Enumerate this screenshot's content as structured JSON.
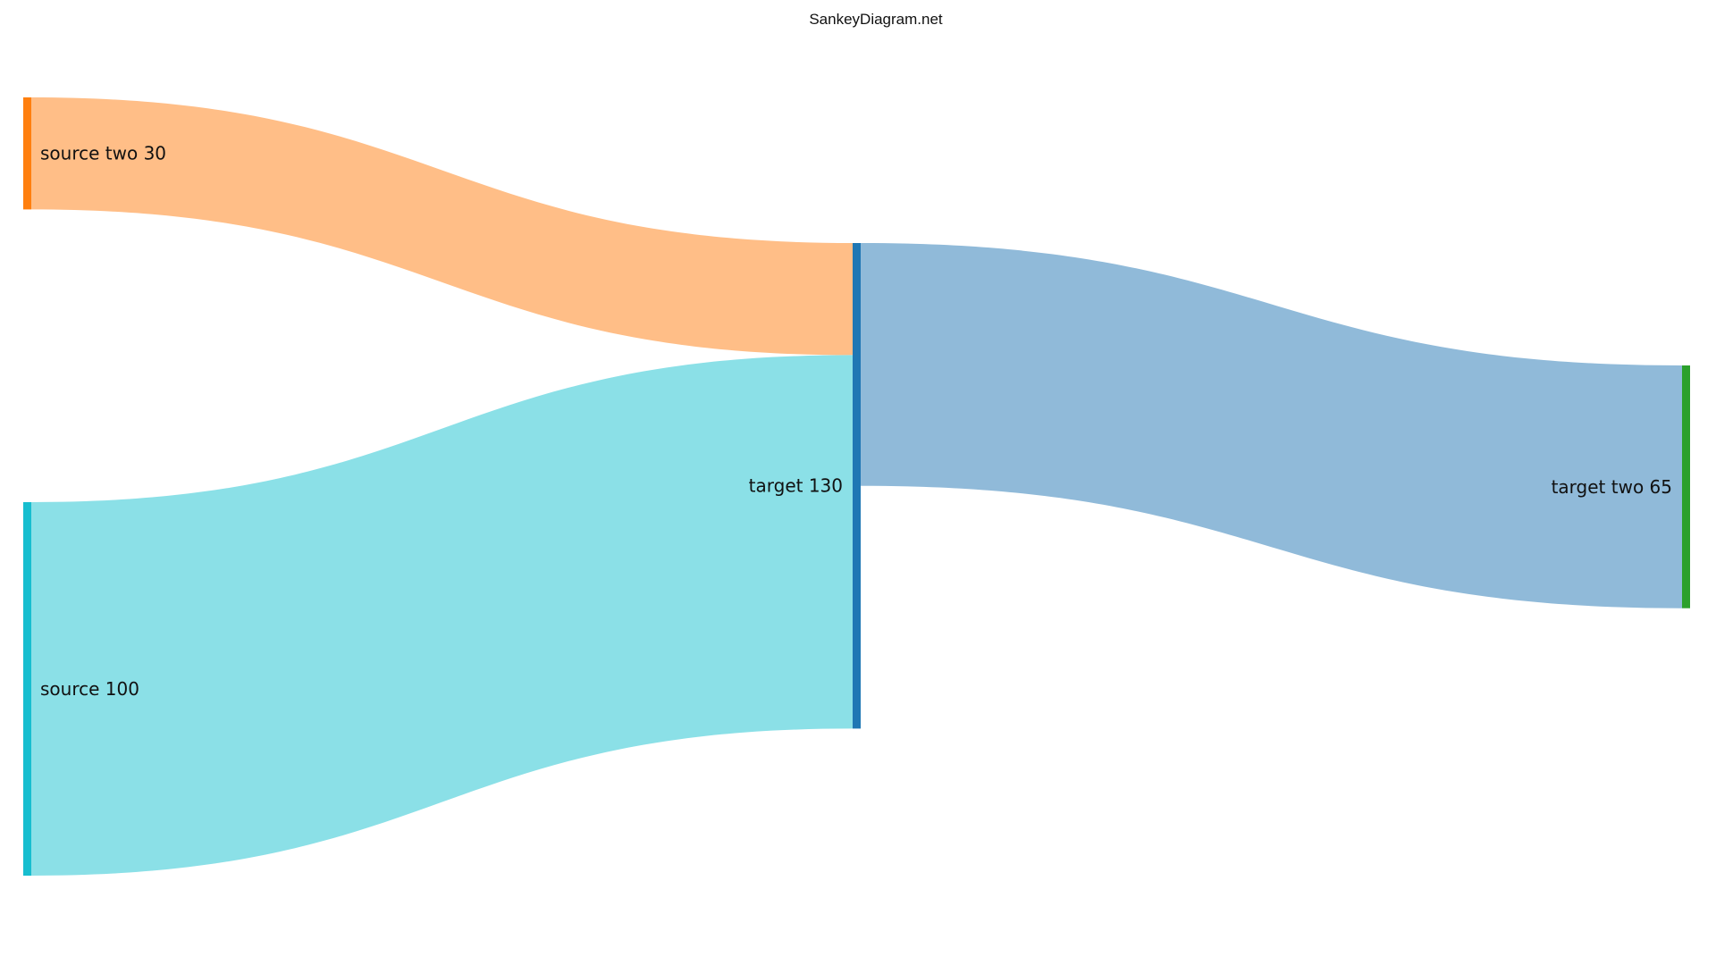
{
  "credit": "SankeyDiagram.net",
  "diagram": {
    "nodes": [
      {
        "id": "source_two",
        "name": "source two",
        "value": 30,
        "label": "source two 30",
        "color": "#ff7f0e"
      },
      {
        "id": "source",
        "name": "source",
        "value": 100,
        "label": "source 100",
        "color": "#17becf"
      },
      {
        "id": "target",
        "name": "target",
        "value": 130,
        "label": "target 130",
        "color": "#1f77b4"
      },
      {
        "id": "target_two",
        "name": "target two",
        "value": 65,
        "label": "target two 65",
        "color": "#2ca02c"
      }
    ],
    "links": [
      {
        "from": "source_two",
        "to": "target",
        "value": 30,
        "color": "#ffbe87"
      },
      {
        "from": "source",
        "to": "target",
        "value": 100,
        "color": "#8be0e7"
      },
      {
        "from": "target",
        "to": "target_two",
        "value": 65,
        "color": "#90bad9"
      }
    ]
  }
}
